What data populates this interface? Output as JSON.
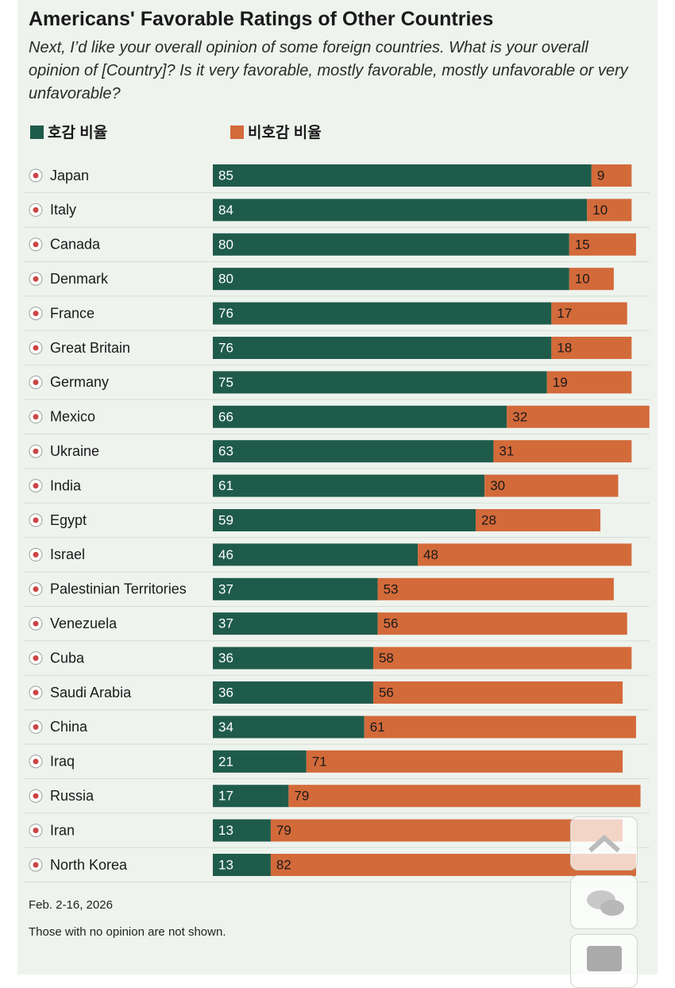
{
  "chart_data": {
    "type": "stacked-bar",
    "title": "Americans' Favorable Ratings of Other Countries",
    "subtitle": "Next, I’d like your overall opinion of some foreign countries. What is your overall opinion of [Country]? Is it very favorable, mostly favorable, mostly unfavorable or very unfavorable?",
    "categories": [
      "Japan",
      "Italy",
      "Canada",
      "Denmark",
      "France",
      "Great Britain",
      "Germany",
      "Mexico",
      "Ukraine",
      "India",
      "Egypt",
      "Israel",
      "Palestinian Territories",
      "Venezuela",
      "Cuba",
      "Saudi Arabia",
      "China",
      "Iraq",
      "Russia",
      "Iran",
      "North Korea"
    ],
    "series": [
      {
        "name": "호감 비율",
        "color": "#1f5b4b",
        "values": [
          85,
          84,
          80,
          80,
          76,
          76,
          75,
          66,
          63,
          61,
          59,
          46,
          37,
          37,
          36,
          36,
          34,
          21,
          17,
          13,
          13
        ]
      },
      {
        "name": "비호감 비율",
        "color": "#d36a3a",
        "values": [
          9,
          10,
          15,
          10,
          17,
          18,
          19,
          32,
          31,
          30,
          28,
          48,
          53,
          56,
          58,
          56,
          61,
          71,
          79,
          79,
          82
        ]
      }
    ],
    "date": "Feb. 2-16, 2026",
    "note": "Those with no opinion are not shown."
  }
}
